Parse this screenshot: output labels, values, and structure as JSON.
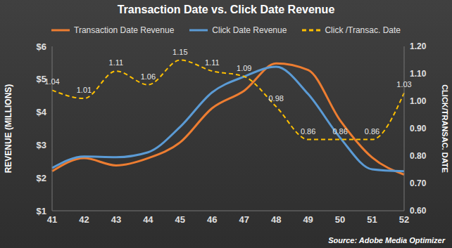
{
  "chart_data": {
    "type": "line",
    "title": "Transaction Date vs. Click Date Revenue",
    "y_label": "REVENUE (MILLIONS)",
    "y2_label": "CLICK/TRANSAC. DATE",
    "annotation": "Source: Adobe Media Optimizer",
    "categories": [
      "41",
      "42",
      "43",
      "44",
      "45",
      "46",
      "47",
      "48",
      "49",
      "50",
      "51",
      "52"
    ],
    "series": [
      {
        "name": "Transaction Date Revenue",
        "color": "#ed7d31",
        "line_style": "solid",
        "values": [
          2.2,
          2.6,
          2.38,
          2.6,
          3.08,
          4.12,
          4.65,
          5.48,
          5.28,
          3.75,
          2.62,
          2.1
        ]
      },
      {
        "name": "Click Date Revenue",
        "color": "#5b9bd5",
        "line_style": "solid",
        "values": [
          2.3,
          2.65,
          2.63,
          2.78,
          3.55,
          4.6,
          5.08,
          5.38,
          4.55,
          3.22,
          2.26,
          2.2
        ]
      },
      {
        "name": "Click /Transac. Date",
        "color": "#ffc000",
        "line_style": "dashed",
        "axis": "y2",
        "data_labels": true,
        "values": [
          1.04,
          1.01,
          1.11,
          1.06,
          1.15,
          1.11,
          1.09,
          0.98,
          0.86,
          0.86,
          0.86,
          1.03
        ]
      }
    ],
    "ylim": [
      1,
      6
    ],
    "yticks": [
      {
        "value": 1,
        "label": "$1"
      },
      {
        "value": 2,
        "label": "$2"
      },
      {
        "value": 3,
        "label": "$3"
      },
      {
        "value": 4,
        "label": "$4"
      },
      {
        "value": 5,
        "label": "$5"
      },
      {
        "value": 6,
        "label": "$6"
      }
    ],
    "y2lim": [
      0.6,
      1.2
    ],
    "y2ticks": [
      {
        "value": 0.6,
        "label": "0.60"
      },
      {
        "value": 0.7,
        "label": "0.70"
      },
      {
        "value": 0.8,
        "label": "0.80"
      },
      {
        "value": 0.9,
        "label": "0.90"
      },
      {
        "value": 1.0,
        "label": "1.00"
      },
      {
        "value": 1.1,
        "label": "1.10"
      },
      {
        "value": 1.2,
        "label": "1.20"
      }
    ],
    "grid": false,
    "legend": "top"
  }
}
